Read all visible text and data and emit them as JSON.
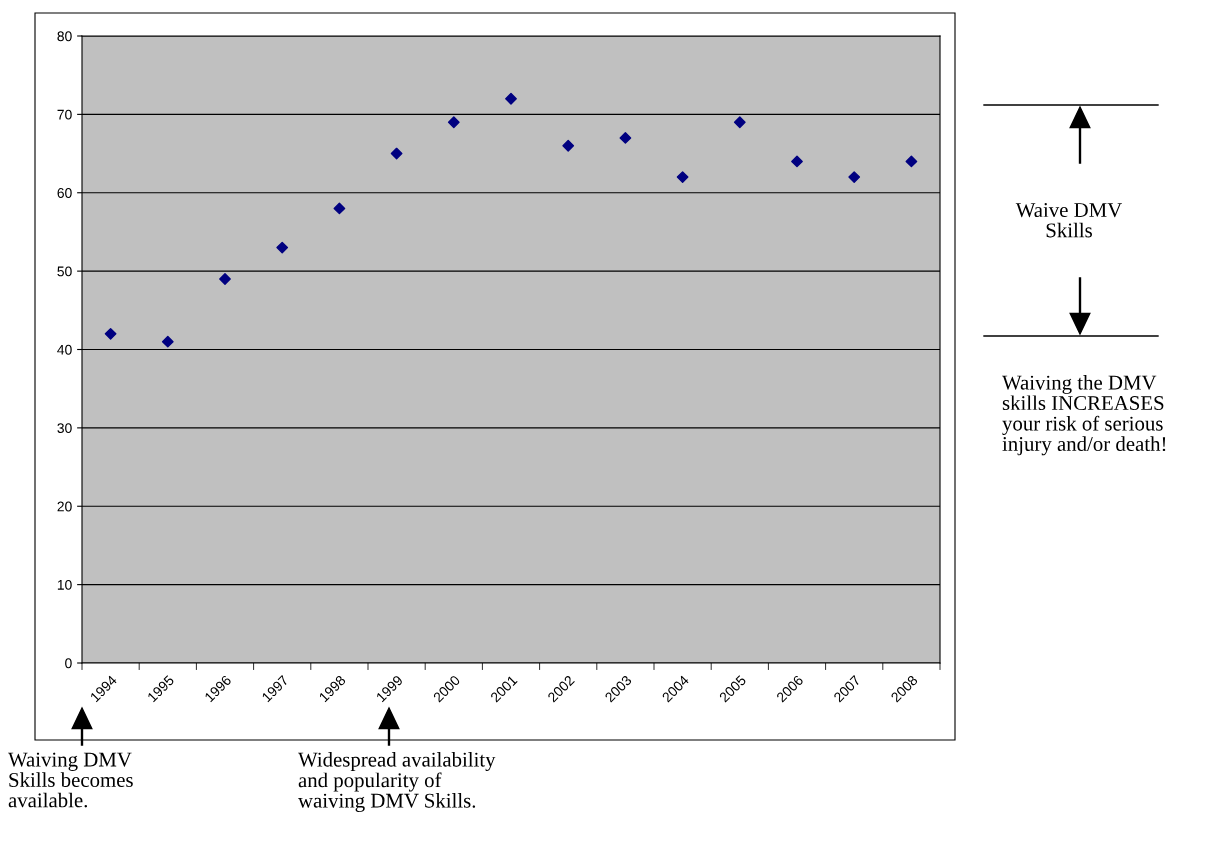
{
  "chart_data": {
    "type": "scatter",
    "categories": [
      "1994",
      "1995",
      "1996",
      "1997",
      "1998",
      "1999",
      "2000",
      "2001",
      "2002",
      "2003",
      "2004",
      "2005",
      "2006",
      "2007",
      "2008"
    ],
    "series": [
      {
        "color": "#000080",
        "values": [
          42,
          41,
          49,
          53,
          58,
          65,
          69,
          72,
          66,
          67,
          62,
          69,
          64,
          62,
          64
        ]
      }
    ],
    "ylim": [
      0,
      80
    ],
    "yticks": [
      0,
      10,
      20,
      30,
      40,
      50,
      60,
      70,
      80
    ],
    "grid": "y",
    "marker": "diamond",
    "legend": false,
    "annotations": [
      "Waiving DMV\nSkills becomes\navailable.",
      "Widespread availability\nand popularity of\nwaiving DMV Skills.",
      "Waive DMV\nSkills",
      "Waiving the DMV\nskills INCREASES\nyour risk of serious\ninjury and/or death!"
    ]
  }
}
